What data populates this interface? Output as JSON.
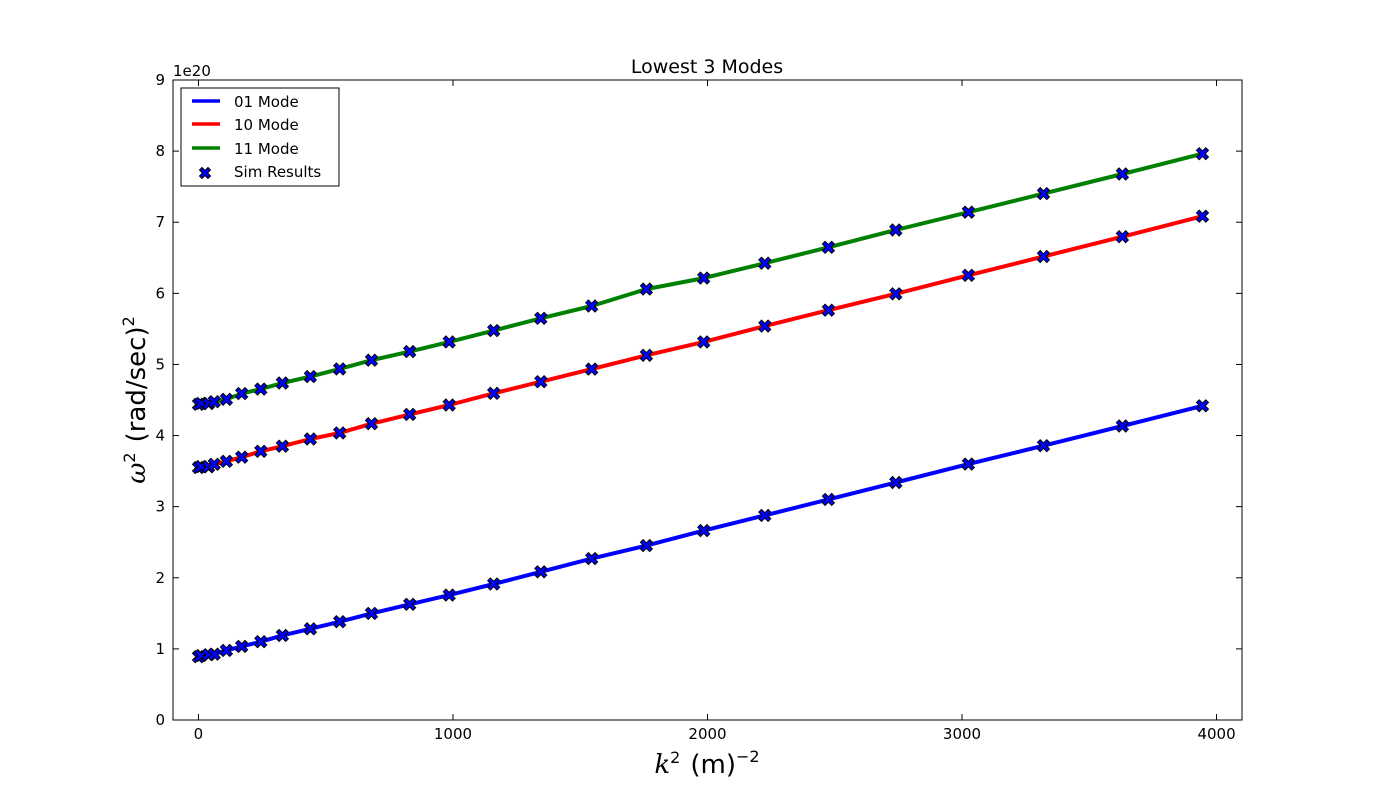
{
  "chart_data": {
    "type": "line",
    "title": "Lowest 3 Modes",
    "xlabel": {
      "symbol": "k",
      "sup": "2",
      "unit": "(m)",
      "unit_sup": "−2"
    },
    "ylabel": {
      "symbol": "ω",
      "sup": "2",
      "unit": "(rad/sec)",
      "unit_sup": "2"
    },
    "y_offset_text": "1e20",
    "xlim": [
      -100,
      4100
    ],
    "ylim": [
      0,
      9
    ],
    "x_ticks": [
      0,
      1000,
      2000,
      3000,
      4000
    ],
    "x_tick_labels": [
      "0",
      "1000",
      "2000",
      "3000",
      "4000"
    ],
    "y_ticks": [
      0,
      1,
      2,
      3,
      4,
      5,
      6,
      7,
      8,
      9
    ],
    "y_tick_labels": [
      "0",
      "1",
      "2",
      "3",
      "4",
      "5",
      "6",
      "7",
      "8",
      "9"
    ],
    "grid": false,
    "legend_position": "upper-left",
    "x": [
      0,
      10,
      40,
      62,
      110,
      170,
      245,
      330,
      440,
      555,
      680,
      830,
      985,
      1160,
      1345,
      1545,
      1760,
      1985,
      2225,
      2475,
      2740,
      3025,
      3320,
      3630,
      3945
    ],
    "series": [
      {
        "name": "01 Mode",
        "color": "#0000ff",
        "kind": "line",
        "y": [
          0.89,
          0.906,
          0.918,
          0.926,
          0.979,
          1.035,
          1.101,
          1.19,
          1.282,
          1.383,
          1.499,
          1.627,
          1.757,
          1.912,
          2.084,
          2.27,
          2.452,
          2.664,
          2.877,
          3.102,
          3.34,
          3.598,
          3.857,
          4.135,
          4.418
        ]
      },
      {
        "name": "10 Mode",
        "color": "#ff0000",
        "kind": "line",
        "y": [
          3.55,
          3.563,
          3.561,
          3.596,
          3.638,
          3.695,
          3.778,
          3.851,
          3.951,
          4.037,
          4.167,
          4.298,
          4.43,
          4.594,
          4.758,
          4.935,
          5.128,
          5.317,
          5.539,
          5.763,
          5.993,
          6.253,
          6.518,
          6.797,
          7.085
        ]
      },
      {
        "name": "11 Mode",
        "color": "#008000",
        "kind": "line",
        "y": [
          4.44,
          4.452,
          4.45,
          4.476,
          4.51,
          4.59,
          4.653,
          4.739,
          4.829,
          4.938,
          5.059,
          5.18,
          5.317,
          5.476,
          5.649,
          5.822,
          6.06,
          6.214,
          6.424,
          6.647,
          6.891,
          7.141,
          7.402,
          7.678,
          7.963
        ]
      },
      {
        "name": "Sim Results",
        "color": "#0000ff",
        "kind": "markers",
        "marker": "X"
      }
    ]
  }
}
